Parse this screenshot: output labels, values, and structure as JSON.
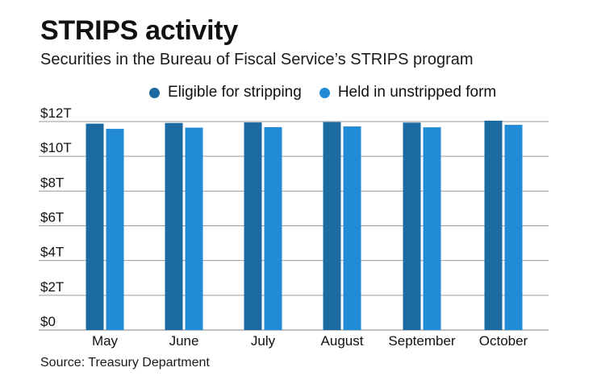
{
  "title": "STRIPS activity",
  "subtitle": "Securities in the Bureau of Fiscal Service’s STRIPS program",
  "source": "Source: Treasury Department",
  "colors": {
    "series_1": "#1b6aa1",
    "series_2": "#218bd6",
    "grid": "#9a9a9a"
  },
  "chart_data": {
    "type": "bar",
    "categories": [
      "May",
      "June",
      "July",
      "August",
      "September",
      "October"
    ],
    "series": [
      {
        "name": "Eligible for stripping",
        "values": [
          11.88,
          11.92,
          11.95,
          11.97,
          11.94,
          12.05
        ]
      },
      {
        "name": "Held in unstripped form",
        "values": [
          11.58,
          11.65,
          11.68,
          11.72,
          11.67,
          11.81
        ]
      }
    ],
    "y_ticks": [
      {
        "value": 0,
        "label": "$0"
      },
      {
        "value": 2,
        "label": "$2T"
      },
      {
        "value": 4,
        "label": "$4T"
      },
      {
        "value": 6,
        "label": "$6T"
      },
      {
        "value": 8,
        "label": "$8T"
      },
      {
        "value": 10,
        "label": "$10T"
      },
      {
        "value": 12,
        "label": "$12T"
      }
    ],
    "ylim": [
      0,
      12
    ],
    "grid": true,
    "legend_position": "top"
  }
}
